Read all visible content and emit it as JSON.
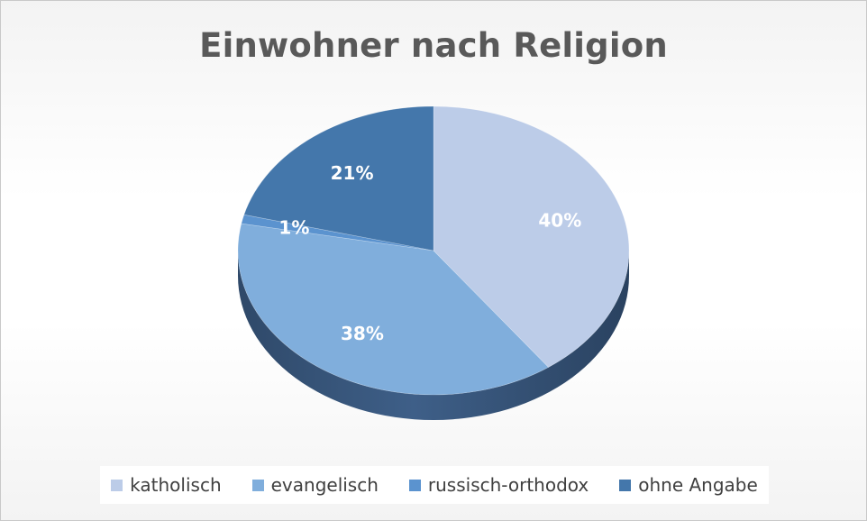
{
  "chart_data": {
    "type": "pie",
    "title": "Einwohner nach Religion",
    "categories": [
      "katholisch",
      "evangelisch",
      "russisch-orthodox",
      "ohne Angabe"
    ],
    "values": [
      40,
      38,
      1,
      21
    ],
    "labels": [
      "40%",
      "38%",
      "1%",
      "21%"
    ],
    "colors": [
      "#bccce8",
      "#80aedc",
      "#5b93cf",
      "#4477ab"
    ],
    "legend_position": "bottom",
    "three_d": true
  }
}
